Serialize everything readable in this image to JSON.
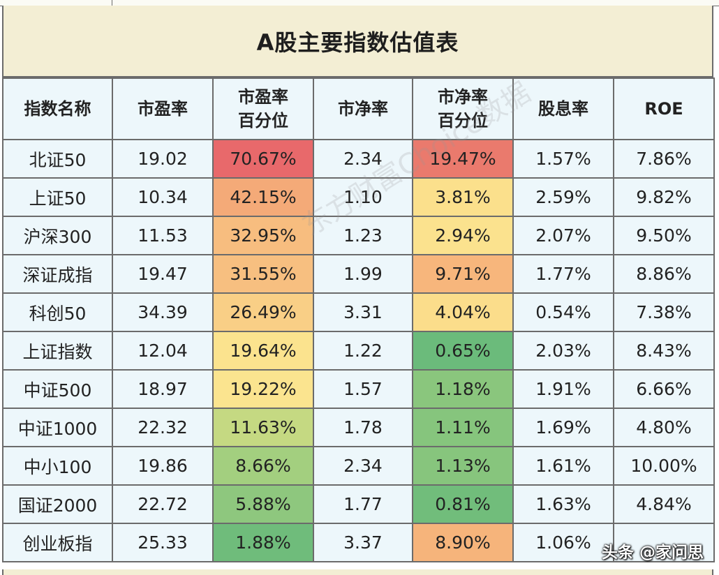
{
  "title": "A股主要指数估值表",
  "columns": [
    "指数名称",
    "市盈率",
    "市盈率\n百分位",
    "市净率",
    "市净率\n百分位",
    "股息率",
    "ROE"
  ],
  "rows": [
    {
      "name": "北证50",
      "pe": "19.02",
      "pe_pct": "70.67%",
      "pb": "2.34",
      "pb_pct": "19.47%",
      "div": "1.57%",
      "roe": "7.86%",
      "pe_color": "#e8696b",
      "pb_color": "#ea7a6d"
    },
    {
      "name": "上证50",
      "pe": "10.34",
      "pe_pct": "42.15%",
      "pb": "1.10",
      "pb_pct": "3.81%",
      "div": "2.59%",
      "roe": "9.82%",
      "pe_color": "#f4aa78",
      "pb_color": "#fbe08c"
    },
    {
      "name": "沪深300",
      "pe": "11.53",
      "pe_pct": "32.95%",
      "pb": "1.23",
      "pb_pct": "2.94%",
      "div": "2.07%",
      "roe": "9.50%",
      "pe_color": "#f7bd7f",
      "pb_color": "#fbe28e"
    },
    {
      "name": "深证成指",
      "pe": "19.47",
      "pe_pct": "31.55%",
      "pb": "1.99",
      "pb_pct": "9.71%",
      "div": "1.77%",
      "roe": "8.86%",
      "pe_color": "#f7bf80",
      "pb_color": "#f7b67c"
    },
    {
      "name": "科创50",
      "pe": "34.39",
      "pe_pct": "26.49%",
      "pb": "3.31",
      "pb_pct": "4.04%",
      "div": "0.54%",
      "roe": "7.38%",
      "pe_color": "#f9cf86",
      "pb_color": "#fbdd8b"
    },
    {
      "name": "上证指数",
      "pe": "12.04",
      "pe_pct": "19.64%",
      "pb": "1.22",
      "pb_pct": "0.65%",
      "div": "2.03%",
      "roe": "8.43%",
      "pe_color": "#fbe38e",
      "pb_color": "#6bbb7b"
    },
    {
      "name": "中证500",
      "pe": "18.97",
      "pe_pct": "19.22%",
      "pb": "1.57",
      "pb_pct": "1.18%",
      "div": "1.91%",
      "roe": "6.66%",
      "pe_color": "#fbe48f",
      "pb_color": "#8ac67d"
    },
    {
      "name": "中证1000",
      "pe": "22.32",
      "pe_pct": "11.63%",
      "pb": "1.78",
      "pb_pct": "1.11%",
      "div": "1.69%",
      "roe": "4.80%",
      "pe_color": "#c5d982",
      "pb_color": "#86c57d"
    },
    {
      "name": "中小100",
      "pe": "19.86",
      "pe_pct": "8.66%",
      "pb": "2.34",
      "pb_pct": "1.13%",
      "div": "1.61%",
      "roe": "10.00%",
      "pe_color": "#a3cf7f",
      "pb_color": "#87c57d"
    },
    {
      "name": "国证2000",
      "pe": "22.72",
      "pe_pct": "5.88%",
      "pb": "1.77",
      "pb_pct": "0.81%",
      "div": "1.63%",
      "roe": "4.84%",
      "pe_color": "#8ec77e",
      "pb_color": "#71bd7b"
    },
    {
      "name": "创业板指",
      "pe": "25.33",
      "pe_pct": "1.88%",
      "pb": "3.37",
      "pb_pct": "8.90%",
      "div": "1.06%",
      "roe": "",
      "pe_color": "#6fbc7b",
      "pb_color": "#f6b47b"
    }
  ],
  "watermark": "东方财富Choice数据",
  "credit": "头条 @家问思",
  "colors": {
    "header_bg": "#edf7fb",
    "title_bg": "#f3eed4",
    "border": "#6b6b6b"
  }
}
